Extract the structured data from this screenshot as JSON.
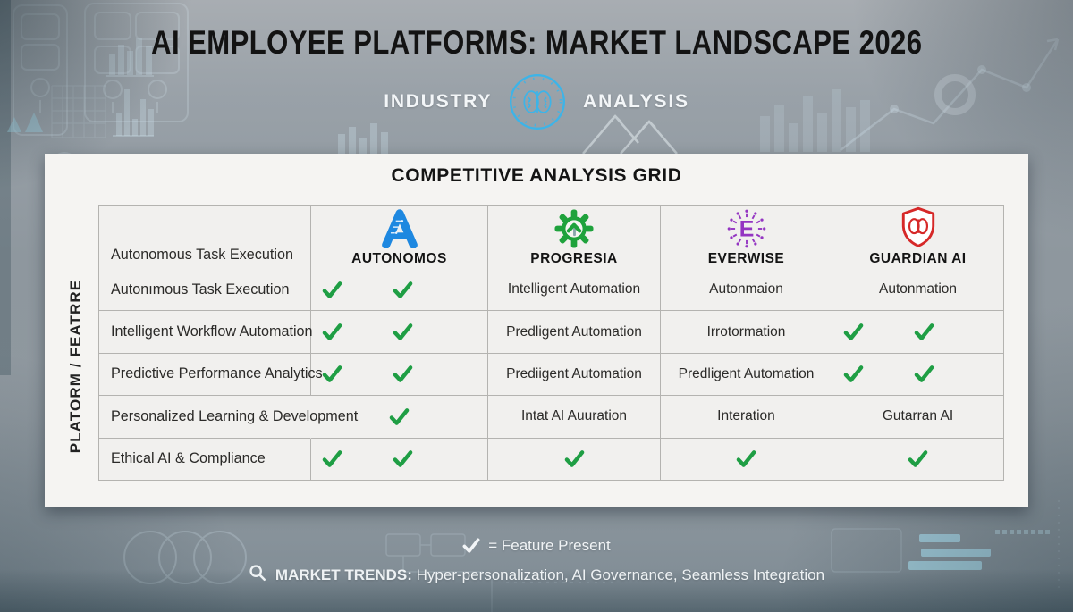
{
  "header": {
    "title": "AI EMPLOYEE PLATFORMS: MARKET LANDSCAPE 2026"
  },
  "badge": {
    "left": "INDUSTRY",
    "right": "ANALYSIS"
  },
  "card": {
    "title": "COMPETITIVE ANALYSIS GRID",
    "vertical_label": "PLATORM / FEATRRE"
  },
  "table": {
    "header_feature": "Autonomous Task Execution",
    "columns": [
      {
        "name": "AUTONOMOS",
        "logo": "autonomos",
        "icon": "autonomos-logo-icon"
      },
      {
        "name": "PROGRESIA",
        "logo": "progresia",
        "icon": "progresia-logo-icon"
      },
      {
        "name": "EVERWISE",
        "logo": "everwise",
        "icon": "everwise-logo-icon"
      },
      {
        "name": "GUARDIAN AI",
        "logo": "guardian",
        "icon": "guardian-logo-icon"
      }
    ],
    "rows": [
      {
        "feature": "Autonımous Task Execution",
        "cells": [
          {
            "checks": 2
          },
          {
            "text": "Intelligent Automation"
          },
          {
            "text": "Autonmaion"
          },
          {
            "text": "Autonmation"
          }
        ]
      },
      {
        "feature": "Intelligent Workflow Automation",
        "cells": [
          {
            "checks": 2
          },
          {
            "text": "Predligent Automation"
          },
          {
            "text": "Irrotormation"
          },
          {
            "checks": 2
          }
        ]
      },
      {
        "feature": "Predictive Performance Analytics",
        "cells": [
          {
            "checks": 2
          },
          {
            "text": "Prediigent Automation"
          },
          {
            "text": "Predligent Automation"
          },
          {
            "checks": 2
          }
        ]
      },
      {
        "feature": "Personalized Learning & Development",
        "cells": [
          {
            "checks": 1,
            "merge_left": true
          },
          {
            "text": "Intat AI Auuration"
          },
          {
            "text": "Interation"
          },
          {
            "text": "Gutarran AI"
          }
        ]
      },
      {
        "feature": "Ethical AI & Compliance",
        "cells": [
          {
            "checks": 2
          },
          {
            "checks": 1
          },
          {
            "checks": 1
          },
          {
            "checks": 1
          }
        ]
      }
    ]
  },
  "legend": {
    "symbol": "✔",
    "text": "= Feature Present"
  },
  "trends": {
    "label": "MARKET TRENDS:",
    "rest": " Hyper-personalization, AI Governance, Seamless Integration"
  },
  "colors": {
    "check": "#1f9e44",
    "autonomos": "#1e88e0",
    "progresia": "#1fa23c",
    "everwise": "#9435c2",
    "guardian": "#d62828",
    "badge": "#3db4e8"
  },
  "chart_data": {
    "type": "table",
    "title": "COMPETITIVE ANALYSIS GRID",
    "columns": [
      "PLATORM / FEATRRE",
      "AUTONOMOS",
      "PROGRESIA",
      "EVERWISE",
      "GUARDIAN AI"
    ],
    "header_row": [
      "Autonomous Task Execution",
      "",
      "",
      "",
      ""
    ],
    "rows": [
      [
        "Autonımous Task Execution",
        "✔✔",
        "Intelligent Automation",
        "Autonmaion",
        "Autonmation"
      ],
      [
        "Intelligent Workflow Automation",
        "✔✔",
        "Predligent Automation",
        "Irrotormation",
        "✔✔"
      ],
      [
        "Predictive Performance Analytics",
        "✔✔",
        "Prediigent Automation",
        "Predligent Automation",
        "✔✔"
      ],
      [
        "Personalized Learning & Development",
        "✔",
        "Intat AI Auuration",
        "Interation",
        "Gutarran AI"
      ],
      [
        "Ethical AI & Compliance",
        "✔✔",
        "✔",
        "✔",
        "✔"
      ]
    ],
    "legend": "✔ = Feature Present"
  }
}
